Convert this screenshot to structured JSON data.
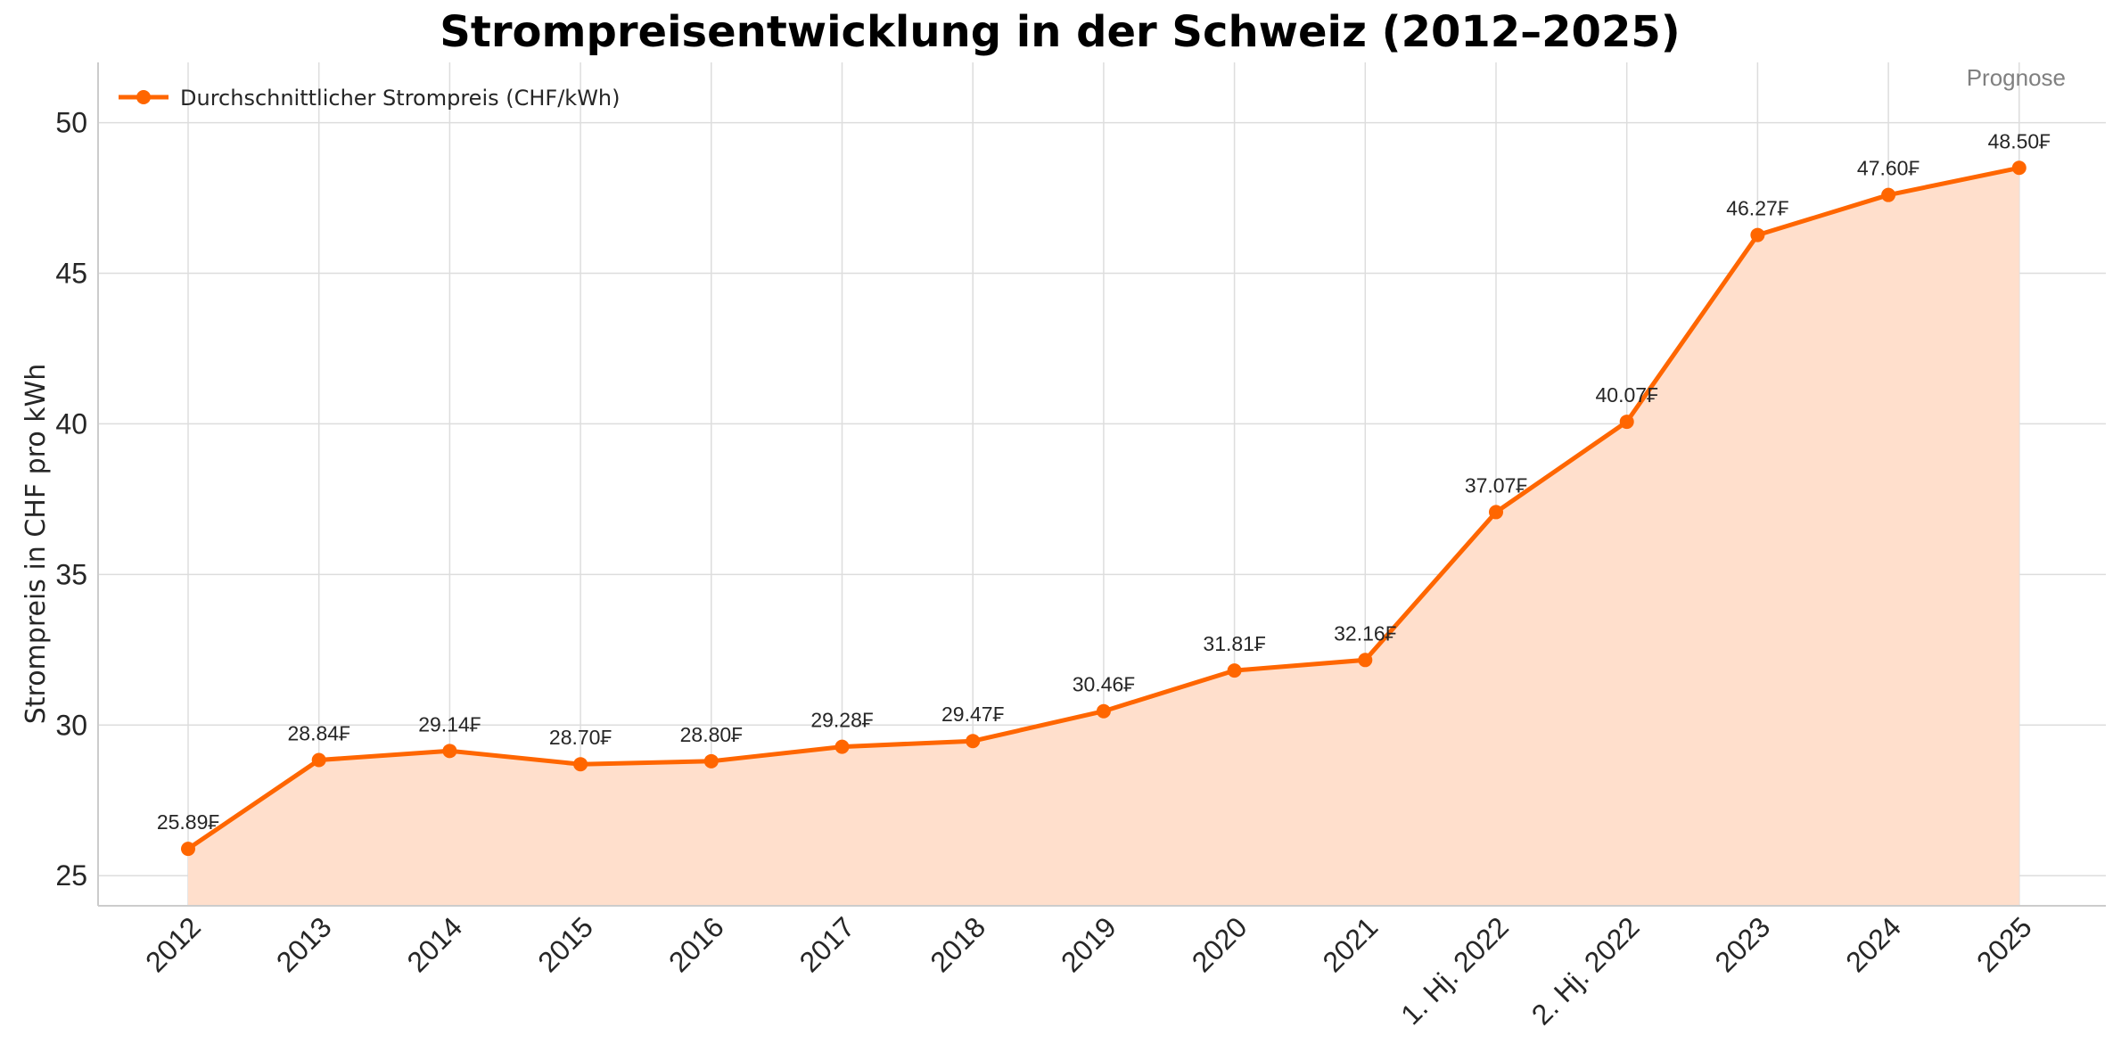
{
  "chart_data": {
    "type": "line",
    "title": "Strompreisentwicklung in der Schweiz (2012–2025)",
    "xlabel": "",
    "ylabel": "Strompreis in CHF pro kWh",
    "categories": [
      "2012",
      "2013",
      "2014",
      "2015",
      "2016",
      "2017",
      "2018",
      "2019",
      "2020",
      "2021",
      "1. Hj. 2022",
      "2. Hj. 2022",
      "2023",
      "2024",
      "2025"
    ],
    "series": [
      {
        "name": "Durchschnittlicher Strompreis (CHF/kWh)",
        "values": [
          25.89,
          28.84,
          29.14,
          28.7,
          28.8,
          29.28,
          29.47,
          30.46,
          31.81,
          32.16,
          37.07,
          40.07,
          46.27,
          47.6,
          48.5
        ],
        "color": "#ff6600",
        "fill": "#ffdfcc"
      }
    ],
    "data_labels": [
      "25.89₣",
      "28.84₣",
      "29.14₣",
      "28.70₣",
      "28.80₣",
      "29.28₣",
      "29.47₣",
      "30.46₣",
      "31.81₣",
      "32.16₣",
      "37.07₣",
      "40.07₣",
      "46.27₣",
      "47.60₣",
      "48.50₣"
    ],
    "yticks": [
      25,
      30,
      35,
      40,
      45,
      50
    ],
    "ylim": [
      24,
      52
    ],
    "grid": true,
    "legend_position": "top-left",
    "annotation": "Prognose"
  }
}
